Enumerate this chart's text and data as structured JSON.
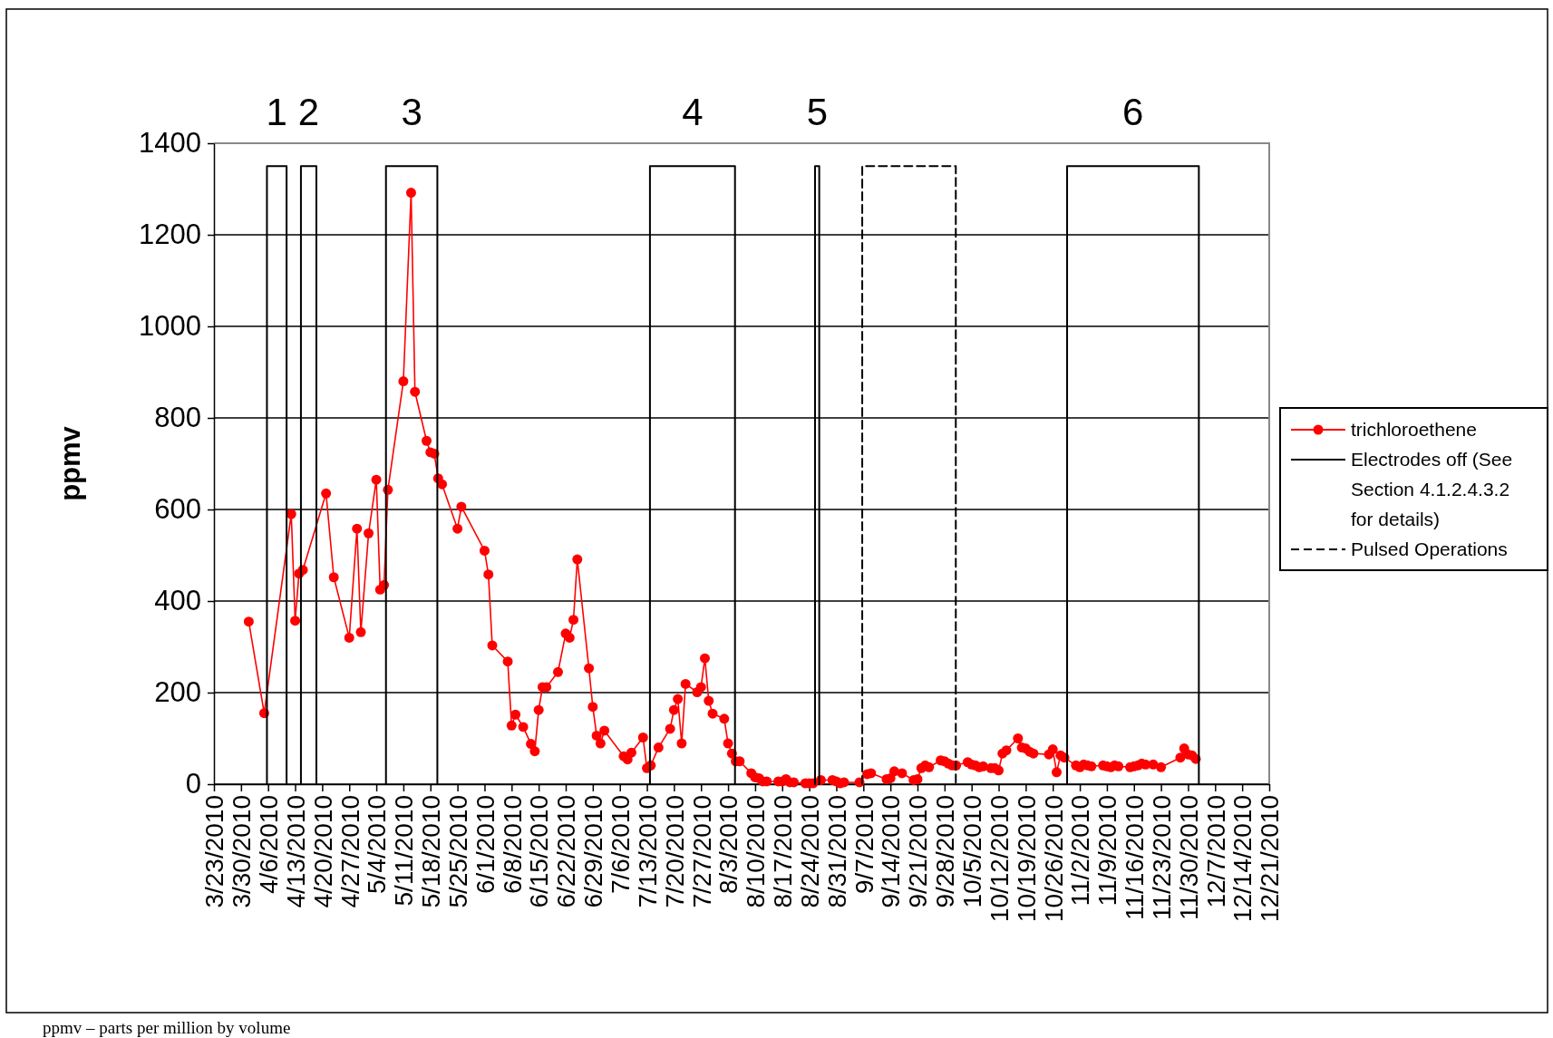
{
  "chart_data": {
    "type": "line",
    "ylabel": "ppmv",
    "xlim": [
      "2010-03-23",
      "2010-12-21"
    ],
    "ylim": [
      0,
      1400
    ],
    "yticks": [
      0,
      200,
      400,
      600,
      800,
      1000,
      1200,
      1400
    ],
    "xticks": [
      {
        "value": "2010-03-23",
        "label": "3/23/2010"
      },
      {
        "value": "2010-03-30",
        "label": "3/30/2010"
      },
      {
        "value": "2010-04-06",
        "label": "4/6/2010"
      },
      {
        "value": "2010-04-13",
        "label": "4/13/2010"
      },
      {
        "value": "2010-04-20",
        "label": "4/20/2010"
      },
      {
        "value": "2010-04-27",
        "label": "4/27/2010"
      },
      {
        "value": "2010-05-04",
        "label": "5/4/2010"
      },
      {
        "value": "2010-05-11",
        "label": "5/11/2010"
      },
      {
        "value": "2010-05-18",
        "label": "5/18/2010"
      },
      {
        "value": "2010-05-25",
        "label": "5/25/2010"
      },
      {
        "value": "2010-06-01",
        "label": "6/1/2010"
      },
      {
        "value": "2010-06-08",
        "label": "6/8/2010"
      },
      {
        "value": "2010-06-15",
        "label": "6/15/2010"
      },
      {
        "value": "2010-06-22",
        "label": "6/22/2010"
      },
      {
        "value": "2010-06-29",
        "label": "6/29/2010"
      },
      {
        "value": "2010-07-06",
        "label": "7/6/2010"
      },
      {
        "value": "2010-07-13",
        "label": "7/13/2010"
      },
      {
        "value": "2010-07-20",
        "label": "7/20/2010"
      },
      {
        "value": "2010-07-27",
        "label": "7/27/2010"
      },
      {
        "value": "2010-08-03",
        "label": "8/3/2010"
      },
      {
        "value": "2010-08-10",
        "label": "8/10/2010"
      },
      {
        "value": "2010-08-17",
        "label": "8/17/2010"
      },
      {
        "value": "2010-08-24",
        "label": "8/24/2010"
      },
      {
        "value": "2010-08-31",
        "label": "8/31/2010"
      },
      {
        "value": "2010-09-07",
        "label": "9/7/2010"
      },
      {
        "value": "2010-09-14",
        "label": "9/14/2010"
      },
      {
        "value": "2010-09-21",
        "label": "9/21/2010"
      },
      {
        "value": "2010-09-28",
        "label": "9/28/2010"
      },
      {
        "value": "2010-10-05",
        "label": "10/5/2010"
      },
      {
        "value": "2010-10-12",
        "label": "10/12/2010"
      },
      {
        "value": "2010-10-19",
        "label": "10/19/2010"
      },
      {
        "value": "2010-10-26",
        "label": "10/26/2010"
      },
      {
        "value": "2010-11-02",
        "label": "11/2/2010"
      },
      {
        "value": "2010-11-09",
        "label": "11/9/2010"
      },
      {
        "value": "2010-11-16",
        "label": "11/16/2010"
      },
      {
        "value": "2010-11-23",
        "label": "11/23/2010"
      },
      {
        "value": "2010-11-30",
        "label": "11/30/2010"
      },
      {
        "value": "2010-12-07",
        "label": "12/7/2010"
      },
      {
        "value": "2010-12-14",
        "label": "12/14/2010"
      },
      {
        "value": "2010-12-21",
        "label": "12/21/2010"
      }
    ],
    "grid": "y",
    "legend": "right",
    "marker": "circle",
    "line_style": "solid",
    "series": [
      {
        "name": "trichloroethene",
        "color": "#ff0000",
        "x": [
          "2010-04-01",
          "2010-04-05",
          "2010-04-12",
          "2010-04-13",
          "2010-04-14",
          "2010-04-15",
          "2010-04-21",
          "2010-04-23",
          "2010-04-27",
          "2010-04-29",
          "2010-04-30",
          "2010-05-02",
          "2010-05-04",
          "2010-05-05",
          "2010-05-06",
          "2010-05-07",
          "2010-05-11",
          "2010-05-13",
          "2010-05-14",
          "2010-05-17",
          "2010-05-18",
          "2010-05-19",
          "2010-05-20",
          "2010-05-21",
          "2010-05-25",
          "2010-05-26",
          "2010-06-01",
          "2010-06-02",
          "2010-06-03",
          "2010-06-07",
          "2010-06-08",
          "2010-06-09",
          "2010-06-11",
          "2010-06-13",
          "2010-06-14",
          "2010-06-15",
          "2010-06-16",
          "2010-06-17",
          "2010-06-20",
          "2010-06-22",
          "2010-06-23",
          "2010-06-24",
          "2010-06-25",
          "2010-06-28",
          "2010-06-29",
          "2010-06-30",
          "2010-07-01",
          "2010-07-02",
          "2010-07-07",
          "2010-07-08",
          "2010-07-09",
          "2010-07-12",
          "2010-07-13",
          "2010-07-14",
          "2010-07-16",
          "2010-07-19",
          "2010-07-20",
          "2010-07-21",
          "2010-07-22",
          "2010-07-23",
          "2010-07-26",
          "2010-07-27",
          "2010-07-28",
          "2010-07-29",
          "2010-07-30",
          "2010-08-02",
          "2010-08-03",
          "2010-08-04",
          "2010-08-05",
          "2010-08-06",
          "2010-08-09",
          "2010-08-10",
          "2010-08-11",
          "2010-08-12",
          "2010-08-13",
          "2010-08-16",
          "2010-08-17",
          "2010-08-18",
          "2010-08-19",
          "2010-08-20",
          "2010-08-23",
          "2010-08-24",
          "2010-08-25",
          "2010-08-27",
          "2010-08-30",
          "2010-08-31",
          "2010-09-01",
          "2010-09-02",
          "2010-09-06",
          "2010-09-08",
          "2010-09-09",
          "2010-09-13",
          "2010-09-14",
          "2010-09-15",
          "2010-09-17",
          "2010-09-20",
          "2010-09-21",
          "2010-09-22",
          "2010-09-23",
          "2010-09-24",
          "2010-09-27",
          "2010-09-28",
          "2010-09-29",
          "2010-09-30",
          "2010-10-01",
          "2010-10-04",
          "2010-10-05",
          "2010-10-06",
          "2010-10-07",
          "2010-10-08",
          "2010-10-10",
          "2010-10-11",
          "2010-10-12",
          "2010-10-13",
          "2010-10-14",
          "2010-10-17",
          "2010-10-18",
          "2010-10-19",
          "2010-10-20",
          "2010-10-21",
          "2010-10-25",
          "2010-10-26",
          "2010-10-27",
          "2010-10-28",
          "2010-10-29",
          "2010-11-01",
          "2010-11-02",
          "2010-11-03",
          "2010-11-04",
          "2010-11-05",
          "2010-11-08",
          "2010-11-09",
          "2010-11-10",
          "2010-11-11",
          "2010-11-12",
          "2010-11-15",
          "2010-11-16",
          "2010-11-17",
          "2010-11-18",
          "2010-11-19",
          "2010-11-21",
          "2010-11-23",
          "2010-11-28",
          "2010-11-29",
          "2010-11-30",
          "2010-12-01",
          "2010-12-02"
        ],
        "values": [
          355,
          155,
          590,
          357,
          460,
          468,
          635,
          452,
          320,
          558,
          332,
          548,
          665,
          425,
          435,
          643,
          880,
          1292,
          857,
          750,
          725,
          722,
          668,
          655,
          558,
          606,
          510,
          458,
          303,
          268,
          128,
          152,
          125,
          88,
          72,
          162,
          212,
          212,
          245,
          329,
          320,
          359,
          491,
          253,
          169,
          106,
          89,
          117,
          61,
          54,
          69,
          102,
          35,
          41,
          80,
          121,
          162,
          186,
          89,
          219,
          201,
          212,
          275,
          182,
          154,
          143,
          89,
          67,
          50,
          50,
          24,
          15,
          13,
          6,
          6,
          6,
          6,
          11,
          4,
          4,
          2,
          2,
          2,
          9,
          9,
          6,
          2,
          4,
          4,
          22,
          24,
          11,
          13,
          28,
          24,
          9,
          11,
          35,
          41,
          37,
          52,
          50,
          45,
          41,
          41,
          48,
          43,
          41,
          37,
          39,
          35,
          35,
          30,
          67,
          74,
          100,
          80,
          78,
          71,
          67,
          65,
          76,
          26,
          63,
          58,
          41,
          37,
          43,
          41,
          39,
          41,
          39,
          37,
          41,
          39,
          37,
          39,
          41,
          45,
          43,
          43,
          37,
          58,
          78,
          65,
          63,
          55
        ]
      },
      {
        "name": "Electrodes off (See Section 4.1.2.4.3.2 for details)",
        "color": "#000000",
        "marker": "none",
        "line_style": "solid",
        "x": [
          "2010-04-05T17:00",
          "2010-04-05T17:00",
          "2010-04-10T19:00",
          "2010-04-10T19:00",
          "2010-04-12",
          "2010-04-14T12:00",
          "2010-04-14T12:00",
          "2010-04-18T12:00",
          "2010-04-18T12:00",
          "2010-05-01",
          "2010-05-06T12:00",
          "2010-05-06T12:00",
          "2010-05-19T19:00",
          "2010-05-19T19:00",
          "2010-07-01",
          "2010-07-13T19:00",
          "2010-07-13T19:00",
          "2010-08-04T19:00",
          "2010-08-04T19:00",
          "2010-08-20",
          "2010-08-25T12:00",
          "2010-08-25T12:00",
          "2010-08-26T14:00",
          "2010-08-26T14:00",
          "2010-10-15",
          "2010-10-29T17:00",
          "2010-10-29T17:00",
          "2010-12-02T19:00",
          "2010-12-02T19:00"
        ],
        "values": [
          0,
          1350,
          1350,
          0,
          null,
          0,
          1350,
          1350,
          0,
          null,
          0,
          1350,
          1350,
          0,
          null,
          0,
          1350,
          1350,
          0,
          null,
          0,
          1350,
          1350,
          0,
          null,
          0,
          1350,
          1350,
          0
        ]
      },
      {
        "name": "Pulsed Operations",
        "color": "#000000",
        "marker": "none",
        "line_style": "dashed",
        "x": [
          "2010-09-06T17:00",
          "2010-09-06T17:00",
          "2010-09-30T22:00",
          "2010-09-30T22:00"
        ],
        "values": [
          0,
          1350,
          1350,
          0
        ]
      }
    ],
    "annotations": [
      {
        "text": "1",
        "x": "2010-04-08T06:00",
        "y": 1350
      },
      {
        "text": "2",
        "x": "2010-04-16T12:00",
        "y": 1350
      },
      {
        "text": "3",
        "x": "2010-05-13T04:00",
        "y": 1350
      },
      {
        "text": "4",
        "x": "2010-07-24T19:00",
        "y": 1350
      },
      {
        "text": "5",
        "x": "2010-08-26T01:00",
        "y": 1350
      },
      {
        "text": "6",
        "x": "2010-11-15T18:00",
        "y": 1350
      },
      "ppmv – parts per million by volume"
    ]
  }
}
